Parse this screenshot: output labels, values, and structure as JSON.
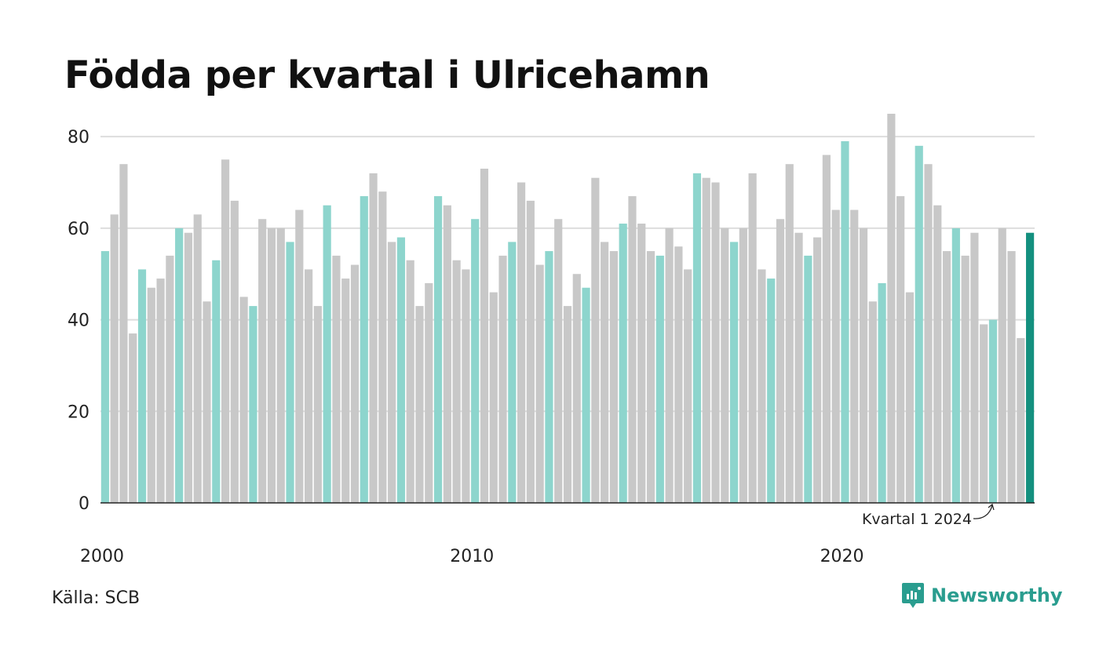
{
  "title": "Födda per kvartal i Ulricehamn",
  "source": "Källa: SCB",
  "brand": {
    "name": "Newsworthy",
    "icon": "newsworthy-logo-icon",
    "color": "#2a9d8f"
  },
  "colors": {
    "q1": "#8dd5cd",
    "other": "#c8c8c8",
    "latest": "#14907f",
    "grid": "#dddddd",
    "axis": "#222222"
  },
  "chart_data": {
    "type": "bar",
    "title": "Födda per kvartal i Ulricehamn",
    "xlabel": "",
    "ylabel": "",
    "ylim": [
      0,
      85
    ],
    "yticks": [
      0,
      20,
      40,
      60,
      80
    ],
    "xtick_labels": [
      "2000",
      "2010",
      "2020"
    ],
    "grid": true,
    "annotation": {
      "text": "Kvartal 1 2024",
      "target": "2024 Q1"
    },
    "categories": [
      "2000 Q1",
      "2000 Q2",
      "2000 Q3",
      "2000 Q4",
      "2001 Q1",
      "2001 Q2",
      "2001 Q3",
      "2001 Q4",
      "2002 Q1",
      "2002 Q2",
      "2002 Q3",
      "2002 Q4",
      "2003 Q1",
      "2003 Q2",
      "2003 Q3",
      "2003 Q4",
      "2004 Q1",
      "2004 Q2",
      "2004 Q3",
      "2004 Q4",
      "2005 Q1",
      "2005 Q2",
      "2005 Q3",
      "2005 Q4",
      "2006 Q1",
      "2006 Q2",
      "2006 Q3",
      "2006 Q4",
      "2007 Q1",
      "2007 Q2",
      "2007 Q3",
      "2007 Q4",
      "2008 Q1",
      "2008 Q2",
      "2008 Q3",
      "2008 Q4",
      "2009 Q1",
      "2009 Q2",
      "2009 Q3",
      "2009 Q4",
      "2010 Q1",
      "2010 Q2",
      "2010 Q3",
      "2010 Q4",
      "2011 Q1",
      "2011 Q2",
      "2011 Q3",
      "2011 Q4",
      "2012 Q1",
      "2012 Q2",
      "2012 Q3",
      "2012 Q4",
      "2013 Q1",
      "2013 Q2",
      "2013 Q3",
      "2013 Q4",
      "2014 Q1",
      "2014 Q2",
      "2014 Q3",
      "2014 Q4",
      "2015 Q1",
      "2015 Q2",
      "2015 Q3",
      "2015 Q4",
      "2016 Q1",
      "2016 Q2",
      "2016 Q3",
      "2016 Q4",
      "2017 Q1",
      "2017 Q2",
      "2017 Q3",
      "2017 Q4",
      "2018 Q1",
      "2018 Q2",
      "2018 Q3",
      "2018 Q4",
      "2019 Q1",
      "2019 Q2",
      "2019 Q3",
      "2019 Q4",
      "2020 Q1",
      "2020 Q2",
      "2020 Q3",
      "2020 Q4",
      "2021 Q1",
      "2021 Q2",
      "2021 Q3",
      "2021 Q4",
      "2022 Q1",
      "2022 Q2",
      "2022 Q3",
      "2022 Q4",
      "2023 Q1",
      "2023 Q2",
      "2023 Q3",
      "2023 Q4",
      "2024 Q1",
      "2024 Q2",
      "2024 Q3",
      "2024 Q4",
      "2025 Q1"
    ],
    "values": [
      55,
      63,
      74,
      37,
      51,
      47,
      49,
      54,
      60,
      59,
      63,
      44,
      53,
      75,
      66,
      45,
      43,
      62,
      60,
      60,
      57,
      64,
      51,
      43,
      65,
      54,
      49,
      52,
      67,
      72,
      68,
      57,
      58,
      53,
      43,
      48,
      67,
      65,
      53,
      51,
      62,
      73,
      46,
      54,
      57,
      70,
      66,
      52,
      55,
      62,
      43,
      50,
      47,
      71,
      57,
      55,
      61,
      67,
      61,
      55,
      54,
      60,
      56,
      51,
      72,
      71,
      70,
      60,
      57,
      60,
      72,
      51,
      49,
      62,
      74,
      59,
      54,
      58,
      76,
      64,
      79,
      64,
      60,
      44,
      48,
      85,
      67,
      46,
      78,
      74,
      65,
      55,
      60,
      54,
      59,
      39,
      40,
      60,
      55,
      36,
      59
    ]
  }
}
